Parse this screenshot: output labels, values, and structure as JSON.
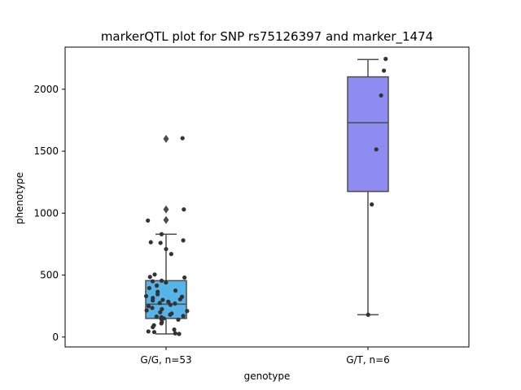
{
  "chart_data": {
    "type": "boxplot",
    "title": "markerQTL plot for SNP rs75126397 and marker_1474",
    "xlabel": "genotype",
    "ylabel": "phenotype",
    "ylim": [
      -80,
      2340
    ],
    "yticks": [
      0,
      500,
      1000,
      1500,
      2000
    ],
    "grid": false,
    "colors": {
      "axes": "#000000",
      "box_line": "#4d4d4d",
      "point": "#333333"
    },
    "groups": [
      {
        "name": "G/G, n=53",
        "color": "#56b4e9",
        "whisker_low": 25,
        "q1": 150,
        "median": 265,
        "q3": 455,
        "whisker_high": 830,
        "outliers": [
          1600,
          1030,
          945
        ],
        "points": [
          1605,
          1030,
          940,
          830,
          780,
          765,
          760,
          710,
          670,
          505,
          485,
          480,
          455,
          450,
          440,
          415,
          395,
          375,
          365,
          345,
          330,
          325,
          315,
          305,
          300,
          295,
          285,
          275,
          270,
          260,
          250,
          235,
          225,
          215,
          210,
          200,
          190,
          180,
          170,
          165,
          160,
          150,
          145,
          140,
          120,
          110,
          95,
          80,
          60,
          45,
          40,
          30,
          25
        ]
      },
      {
        "name": "G/T, n=6",
        "color": "#8e8cf0",
        "whisker_low": 180,
        "q1": 1175,
        "median": 1730,
        "q3": 2100,
        "whisker_high": 2240,
        "outliers": [],
        "points": [
          2245,
          2150,
          1950,
          1515,
          1070,
          180
        ]
      }
    ]
  }
}
